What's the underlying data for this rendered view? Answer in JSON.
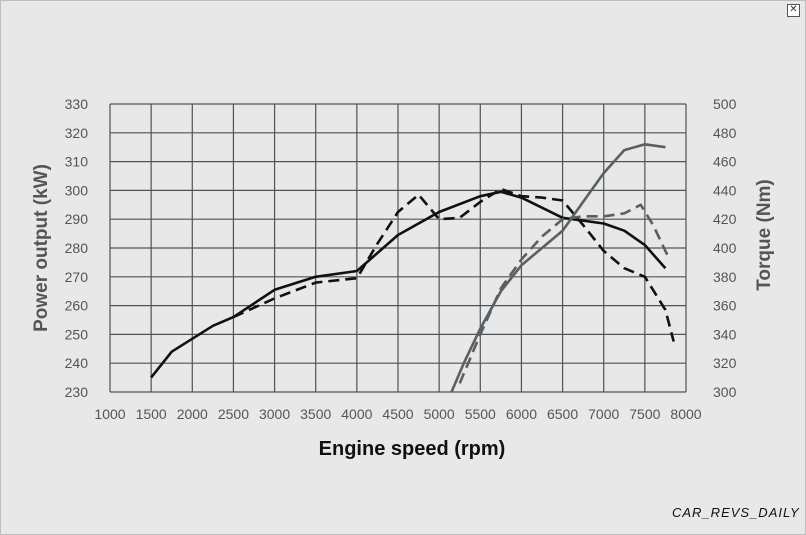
{
  "watermark": "CAR_REVS_DAILY",
  "close_glyph": "✕",
  "chart_data": {
    "type": "line",
    "xlabel": "Engine speed (rpm)",
    "ylabel_left": "Power output (kW)",
    "ylabel_right": "Torque (Nm)",
    "xlim": [
      1000,
      8000
    ],
    "ylim_left": [
      230,
      330
    ],
    "ylim_right": [
      300,
      500
    ],
    "x_ticks": [
      1000,
      1500,
      2000,
      2500,
      3000,
      3500,
      4000,
      4500,
      5000,
      5500,
      6000,
      6500,
      7000,
      7500,
      8000
    ],
    "y_left_ticks": [
      230,
      240,
      250,
      260,
      270,
      280,
      290,
      300,
      310,
      320,
      330
    ],
    "y_right_ticks": [
      300,
      320,
      340,
      360,
      380,
      400,
      420,
      440,
      460,
      480,
      500
    ],
    "grid": true,
    "colors": {
      "black": "#111111",
      "gray": "#5a5f63",
      "grid": "#4d5457",
      "background": "#e8e8e8"
    },
    "series": [
      {
        "axis": "right",
        "style": "solid",
        "color": "#111111",
        "x": [
          1500,
          1750,
          2250,
          2500,
          3000,
          3500,
          4000,
          4500,
          5000,
          5500,
          5750,
          6000,
          6500,
          7000,
          7250,
          7500,
          7750
        ],
        "y": [
          310,
          328,
          346,
          352,
          371,
          380,
          384,
          409,
          425,
          436,
          439,
          435,
          421,
          417,
          412,
          402,
          386
        ]
      },
      {
        "axis": "right",
        "style": "dashed",
        "color": "#111111",
        "x": [
          2500,
          3000,
          3500,
          4000,
          4250,
          4500,
          4750,
          5000,
          5250,
          5500,
          5750,
          6000,
          6250,
          6500,
          6750,
          7000,
          7250,
          7500,
          7750,
          7850
        ],
        "y": [
          352,
          365,
          376,
          379,
          403,
          425,
          437,
          420,
          421,
          432,
          441,
          436,
          435,
          433,
          416,
          398,
          386,
          380,
          357,
          335
        ]
      },
      {
        "axis": "left",
        "style": "solid",
        "color": "#5a5f63",
        "x": [
          5150,
          5300,
          5500,
          5750,
          6000,
          6250,
          6500,
          6750,
          7000,
          7250,
          7500,
          7750
        ],
        "y": [
          230,
          240,
          252,
          265,
          274,
          280,
          286,
          296,
          306,
          314,
          316,
          315
        ]
      },
      {
        "axis": "left",
        "style": "dashed",
        "color": "#5a5f63",
        "x": [
          5250,
          5500,
          5750,
          6000,
          6250,
          6500,
          6750,
          7000,
          7250,
          7450,
          7600,
          7800
        ],
        "y": [
          233,
          250,
          266,
          276,
          284,
          290,
          291,
          291,
          292,
          295,
          288,
          276
        ]
      }
    ]
  }
}
